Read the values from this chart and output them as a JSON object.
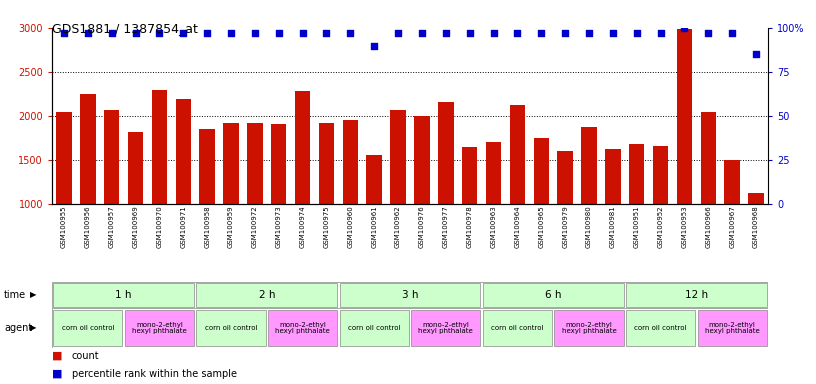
{
  "title": "GDS1881 / 1387854_at",
  "samples": [
    "GSM100955",
    "GSM100956",
    "GSM100957",
    "GSM100969",
    "GSM100970",
    "GSM100971",
    "GSM100958",
    "GSM100959",
    "GSM100972",
    "GSM100973",
    "GSM100974",
    "GSM100975",
    "GSM100960",
    "GSM100961",
    "GSM100962",
    "GSM100976",
    "GSM100977",
    "GSM100978",
    "GSM100963",
    "GSM100964",
    "GSM100965",
    "GSM100979",
    "GSM100980",
    "GSM100981",
    "GSM100951",
    "GSM100952",
    "GSM100953",
    "GSM100966",
    "GSM100967",
    "GSM100968"
  ],
  "counts": [
    2040,
    2250,
    2070,
    1820,
    2300,
    2190,
    1850,
    1920,
    1920,
    1910,
    2280,
    1920,
    1960,
    1560,
    2070,
    2000,
    2160,
    1650,
    1700,
    2120,
    1750,
    1600,
    1870,
    1630,
    1680,
    1660,
    2990,
    2050,
    1500,
    1130
  ],
  "percentiles": [
    97,
    97,
    97,
    97,
    97,
    97,
    97,
    97,
    97,
    97,
    97,
    97,
    97,
    90,
    97,
    97,
    97,
    97,
    97,
    97,
    97,
    97,
    97,
    97,
    97,
    97,
    100,
    97,
    97,
    85
  ],
  "bar_color": "#cc1100",
  "dot_color": "#0000cc",
  "left_ylim": [
    1000,
    3000
  ],
  "right_ylim": [
    0,
    100
  ],
  "left_yticks": [
    1000,
    1500,
    2000,
    2500,
    3000
  ],
  "right_yticks": [
    0,
    25,
    50,
    75,
    100
  ],
  "time_groups": [
    {
      "label": "1 h",
      "start": 0,
      "end": 6
    },
    {
      "label": "2 h",
      "start": 6,
      "end": 12
    },
    {
      "label": "3 h",
      "start": 12,
      "end": 18
    },
    {
      "label": "6 h",
      "start": 18,
      "end": 24
    },
    {
      "label": "12 h",
      "start": 24,
      "end": 30
    }
  ],
  "agent_groups": [
    {
      "label": "corn oil control",
      "start": 0,
      "end": 3,
      "color": "#ccffcc"
    },
    {
      "label": "mono-2-ethyl\nhexyl phthalate",
      "start": 3,
      "end": 6,
      "color": "#ff99ff"
    },
    {
      "label": "corn oil control",
      "start": 6,
      "end": 9,
      "color": "#ccffcc"
    },
    {
      "label": "mono-2-ethyl\nhexyl phthalate",
      "start": 9,
      "end": 12,
      "color": "#ff99ff"
    },
    {
      "label": "corn oil control",
      "start": 12,
      "end": 15,
      "color": "#ccffcc"
    },
    {
      "label": "mono-2-ethyl\nhexyl phthalate",
      "start": 15,
      "end": 18,
      "color": "#ff99ff"
    },
    {
      "label": "corn oil control",
      "start": 18,
      "end": 21,
      "color": "#ccffcc"
    },
    {
      "label": "mono-2-ethyl\nhexyl phthalate",
      "start": 21,
      "end": 24,
      "color": "#ff99ff"
    },
    {
      "label": "corn oil control",
      "start": 24,
      "end": 27,
      "color": "#ccffcc"
    },
    {
      "label": "mono-2-ethyl\nhexyl phthalate",
      "start": 27,
      "end": 30,
      "color": "#ff99ff"
    }
  ],
  "bg_color": "#ffffff",
  "time_group_color": "#ccffcc",
  "grid_dotted_ticks": [
    1500,
    2000,
    2500
  ]
}
